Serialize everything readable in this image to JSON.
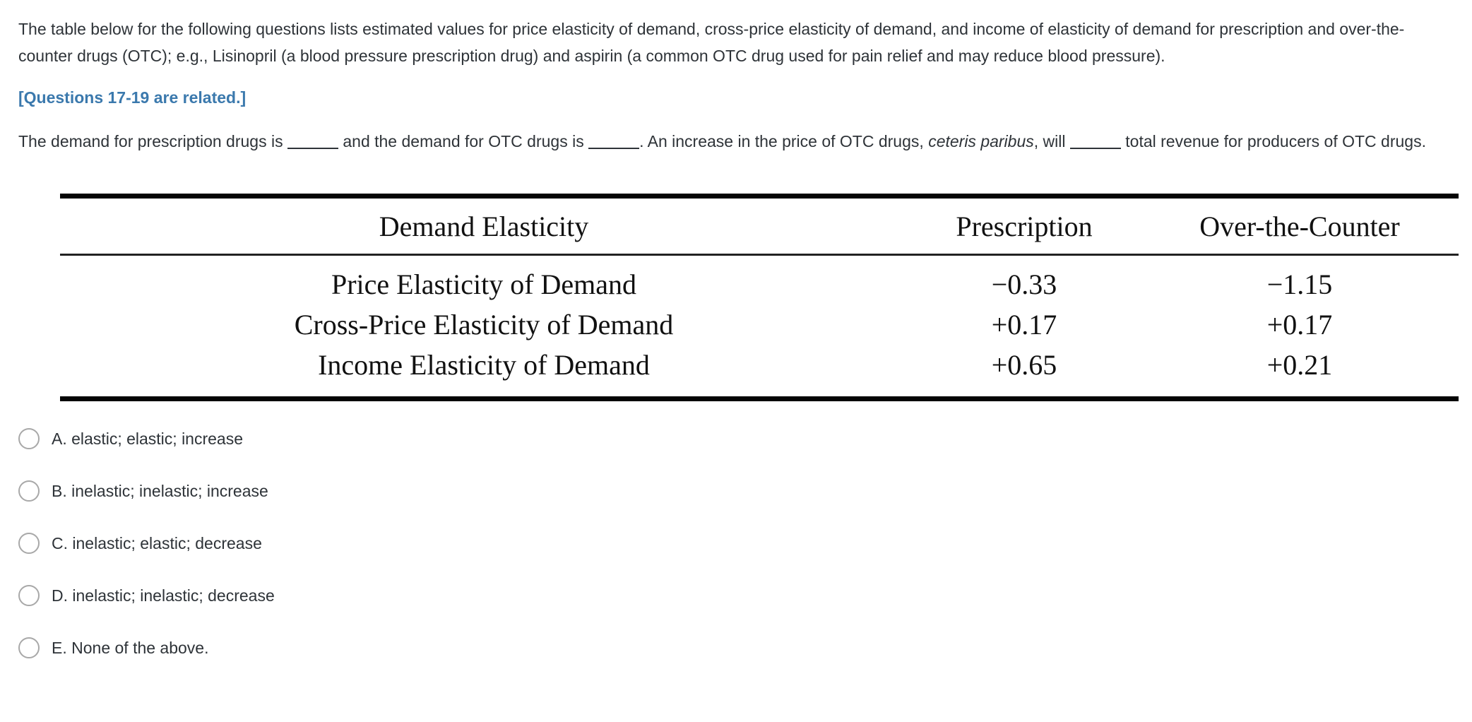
{
  "colors": {
    "accent_blue": "#3b79ad",
    "body_text": "#2e3338",
    "table_text": "#111111",
    "table_rule": "#050505",
    "radio_border": "#a8a8a8",
    "background": "#ffffff"
  },
  "intro_text": "The table below for the following questions lists estimated values for price elasticity of demand, cross-price elasticity of demand, and income of elasticity of demand for prescription and over-the-counter drugs (OTC); e.g., Lisinopril (a blood pressure prescription drug) and aspirin (a common OTC drug used for pain relief and may reduce blood pressure).",
  "related_note": "[Questions 17-19 are related.]",
  "question": {
    "part1": "The demand for prescription drugs is",
    "part2": "and the demand for OTC drugs is",
    "part3": ". An increase in the price of OTC drugs,",
    "italic_phrase": "ceteris paribus",
    "part4": ", will",
    "part5": "total revenue for producers of OTC drugs."
  },
  "table": {
    "headers": {
      "label": "Demand Elasticity",
      "prescription": "Prescription",
      "otc": "Over-the-Counter"
    },
    "rows": [
      {
        "label": "Price Elasticity of Demand",
        "prescription": "−0.33",
        "otc": "−1.15"
      },
      {
        "label": "Cross-Price Elasticity of Demand",
        "prescription": "+0.17",
        "otc": "+0.17"
      },
      {
        "label": "Income Elasticity of Demand",
        "prescription": "+0.65",
        "otc": "+0.21"
      }
    ]
  },
  "options": [
    {
      "label": "A. elastic; elastic; increase"
    },
    {
      "label": "B. inelastic; inelastic; increase"
    },
    {
      "label": "C. inelastic; elastic; decrease"
    },
    {
      "label": "D. inelastic; inelastic; decrease"
    },
    {
      "label": "E. None of the above."
    }
  ]
}
